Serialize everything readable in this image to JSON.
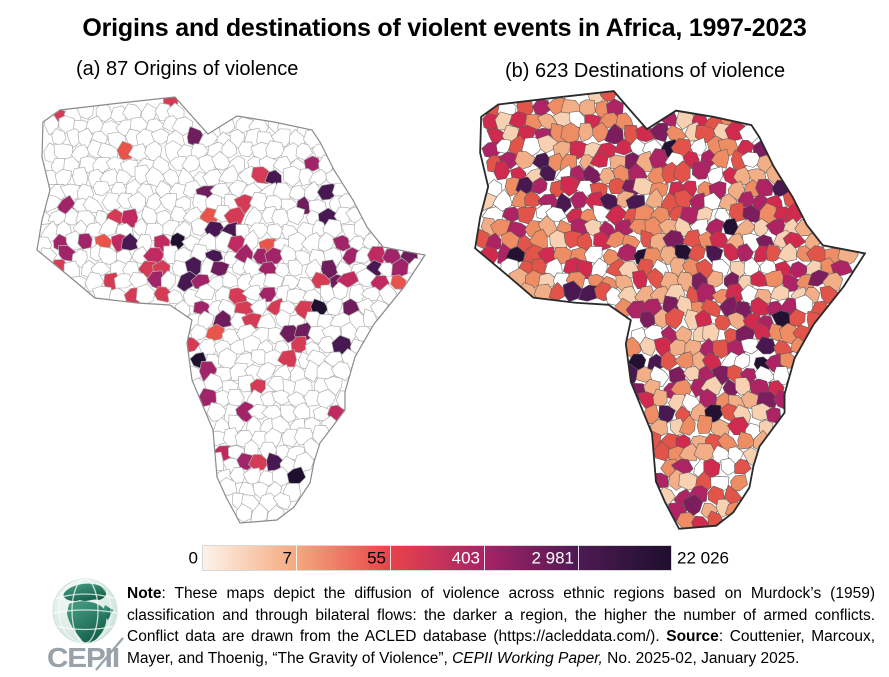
{
  "figure": {
    "title": "Origins and destinations of violent events in Africa, 1997-2023",
    "panel_a_label": "(a) 87 Origins of violence",
    "panel_b_label": "(b) 623 Destinations of violence",
    "origins_count": 87,
    "destinations_count": 623
  },
  "colorbar": {
    "tick_labels": [
      "0",
      "7",
      "55",
      "403",
      "2 981",
      "22 026"
    ],
    "tick_values": [
      0,
      7,
      55,
      403,
      2981,
      22026
    ],
    "scale": "logarithmic",
    "gradient_stops": [
      "#fdf3ea",
      "#f4a97e",
      "#e8434a",
      "#a92367",
      "#4e1a54",
      "#1e0f2c"
    ],
    "label_colors": [
      "#000000",
      "#000000",
      "#000000",
      "#ffffff",
      "#ffffff",
      "#000000"
    ]
  },
  "maps": {
    "border_color_origins": "#b0b0b0",
    "border_color_destinations": "#5a5a5a",
    "outline_color_origins": "#8a8a8a",
    "outline_color_destinations": "#2a2a2a",
    "origins_palette": [
      [
        "#e8544a",
        0.08
      ],
      [
        "#d63b55",
        0.22
      ],
      [
        "#c12a60",
        0.16
      ],
      [
        "#a22468",
        0.22
      ],
      [
        "#6f1d5c",
        0.14
      ],
      [
        "#471851",
        0.12
      ],
      [
        "#201030",
        0.06
      ]
    ],
    "destinations_palette": [
      [
        "#ffffff",
        0.1
      ],
      [
        "#f8d0b2",
        0.09
      ],
      [
        "#f2ae86",
        0.14
      ],
      [
        "#ee8c64",
        0.15
      ],
      [
        "#e25349",
        0.16
      ],
      [
        "#d02b4f",
        0.12
      ],
      [
        "#ad2364",
        0.12
      ],
      [
        "#7c1e5e",
        0.07
      ],
      [
        "#4a1850",
        0.03
      ],
      [
        "#241132",
        0.02
      ]
    ]
  },
  "note": {
    "segments": [
      {
        "text": "Note",
        "bold": true
      },
      {
        "text": ": These maps depict the diffusion of violence across ethnic regions based on Murdock’s (1959) classification and through bilateral flows: the darker a region, the higher the number of armed conflicts. Conflict data are drawn from the ACLED database (https://acleddata.com/). "
      },
      {
        "text": "Source",
        "bold": true
      },
      {
        "text": ": Couttenier, Marcoux, Mayer, and Thoenig, “The Gravity of Violence”, "
      },
      {
        "text": "CEPII Working Paper,",
        "italic": true
      },
      {
        "text": " No. 2025-02, January 2025."
      }
    ]
  },
  "logo": {
    "text": "CEPII",
    "globe_land_color": "#2e8b74",
    "text_color": "#99a1a9"
  },
  "chart_data": {
    "type": "heatmap",
    "title": "Origins and destinations of violent events in Africa, 1997-2023",
    "panels": [
      {
        "label": "(a) 87 Origins of violence",
        "highlighted_regions": 87
      },
      {
        "label": "(b) 623 Destinations of violence",
        "highlighted_regions": 623
      }
    ],
    "colorbar_ticks": [
      0,
      7,
      55,
      403,
      2981,
      22026
    ],
    "colorbar_range": [
      0,
      22026
    ],
    "legend_position": "bottom-center",
    "notes": "choropleth of Murdock (1959) ethnic regions; darker = more armed conflicts"
  }
}
